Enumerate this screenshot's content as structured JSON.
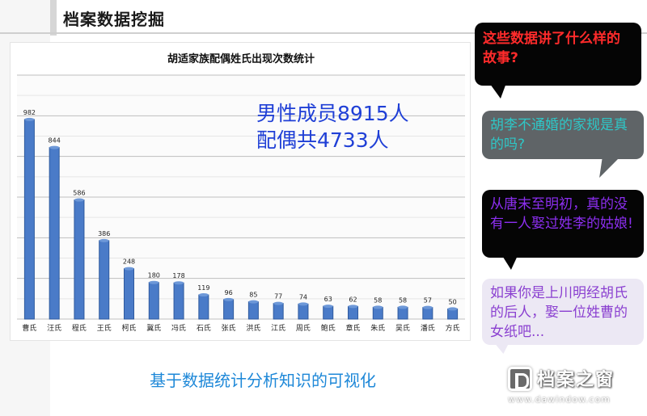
{
  "header": {
    "title": "档案数据挖掘"
  },
  "stats": {
    "line1": "男性成员8915人",
    "line2": "配偶共4733人"
  },
  "caption": "基于数据统计分析知识的可视化",
  "bubbles": [
    {
      "text": "这些数据讲了什么样的故事?"
    },
    {
      "text": "胡李不通婚的家规是真的吗?"
    },
    {
      "text": "从唐末至明初，真的没有一人娶过姓李的姑娘!"
    },
    {
      "text": "如果你是上川明经胡氏的后人，娶一位姓曹的女纸吧..."
    }
  ],
  "watermark": {
    "text": "档案之窗",
    "url": "www.dawindow.com"
  },
  "colors": {
    "bar": "#4a7bc8",
    "bar_dark": "#2f5a9e",
    "caption": "#1e88d8",
    "stats": "#1f3fd6"
  },
  "chart_data": {
    "type": "bar",
    "title": "胡适家族配偶姓氏出现次数统计",
    "categories": [
      "曹氏",
      "汪氏",
      "程氏",
      "王氏",
      "柯氏",
      "冀氏",
      "冯氏",
      "石氏",
      "张氏",
      "洪氏",
      "江氏",
      "周氏",
      "鲍氏",
      "章氏",
      "朱氏",
      "吴氏",
      "潘氏",
      "方氏"
    ],
    "values": [
      982,
      844,
      586,
      386,
      248,
      180,
      178,
      119,
      96,
      85,
      77,
      74,
      63,
      62,
      58,
      58,
      57,
      50
    ],
    "xlabel": "",
    "ylabel": "",
    "ylim": [
      0,
      1200
    ],
    "grid": true,
    "legend": "none"
  }
}
